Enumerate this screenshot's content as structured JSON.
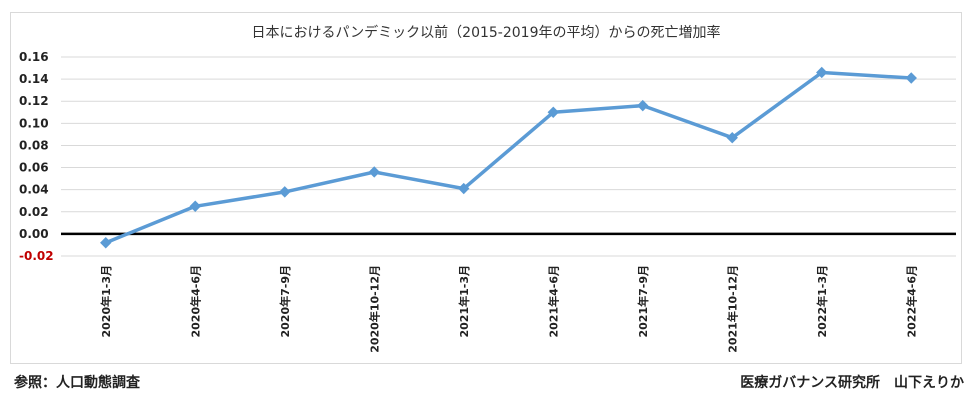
{
  "chart_data": {
    "type": "line",
    "title": "日本におけるパンデミック以前（2015-2019年の平均）からの死亡増加率",
    "categories": [
      "2020年1-3月",
      "2020年4-6月",
      "2020年7-9月",
      "2020年10-12月",
      "2021年1-3月",
      "2021年4-6月",
      "2021年7-9月",
      "2021年10-12月",
      "2022年1-3月",
      "2022年4-6月"
    ],
    "series": [
      {
        "values": [
          -0.008,
          0.025,
          0.038,
          0.056,
          0.041,
          0.11,
          0.116,
          0.087,
          0.146,
          0.141
        ]
      }
    ],
    "y_ticks": [
      "-0.02",
      "0.00",
      "0.02",
      "0.04",
      "0.06",
      "0.08",
      "0.10",
      "0.12",
      "0.14",
      "0.16"
    ],
    "ylim": [
      -0.02,
      0.16
    ],
    "grid": "horizontal",
    "zero_line": true,
    "legend": "none",
    "colors": {
      "line": "#5b9bd5",
      "zero_line": "#000000",
      "grid": "#d9d9d9",
      "negative_tick": "#c00000"
    }
  },
  "footer": {
    "source": "参照：人口動態調査",
    "credit": "医療ガバナンス研究所　山下えりか"
  }
}
